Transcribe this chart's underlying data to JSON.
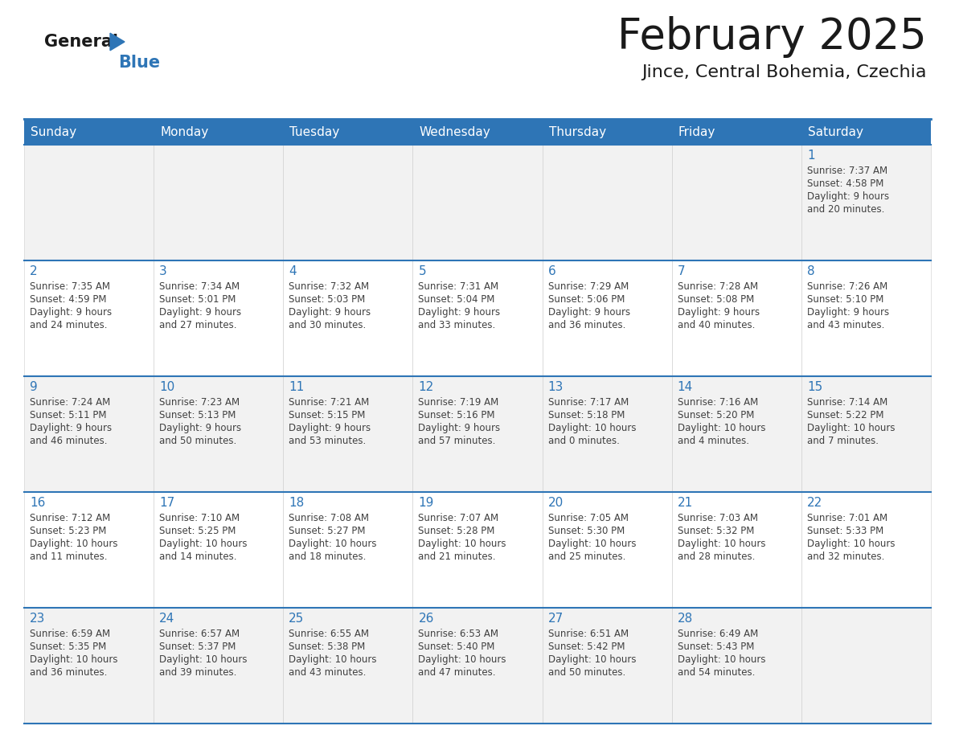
{
  "title": "February 2025",
  "subtitle": "Jince, Central Bohemia, Czechia",
  "header_bg": "#2E75B6",
  "header_text": "#FFFFFF",
  "cell_bg_even": "#F2F2F2",
  "cell_bg_odd": "#FFFFFF",
  "day_num_color": "#2E75B6",
  "info_color": "#404040",
  "row_border_color": "#2E75B6",
  "cell_border_color": "#CCCCCC",
  "title_color": "#1a1a1a",
  "subtitle_color": "#1a1a1a",
  "logo_general_color": "#1a1a1a",
  "logo_blue_color": "#2E75B6",
  "header_row": [
    "Sunday",
    "Monday",
    "Tuesday",
    "Wednesday",
    "Thursday",
    "Friday",
    "Saturday"
  ],
  "days": [
    {
      "date": 1,
      "col": 6,
      "row": 0,
      "sunrise": "7:37 AM",
      "sunset": "4:58 PM",
      "daylight_h": "9 hours",
      "daylight_m": "and 20 minutes."
    },
    {
      "date": 2,
      "col": 0,
      "row": 1,
      "sunrise": "7:35 AM",
      "sunset": "4:59 PM",
      "daylight_h": "9 hours",
      "daylight_m": "and 24 minutes."
    },
    {
      "date": 3,
      "col": 1,
      "row": 1,
      "sunrise": "7:34 AM",
      "sunset": "5:01 PM",
      "daylight_h": "9 hours",
      "daylight_m": "and 27 minutes."
    },
    {
      "date": 4,
      "col": 2,
      "row": 1,
      "sunrise": "7:32 AM",
      "sunset": "5:03 PM",
      "daylight_h": "9 hours",
      "daylight_m": "and 30 minutes."
    },
    {
      "date": 5,
      "col": 3,
      "row": 1,
      "sunrise": "7:31 AM",
      "sunset": "5:04 PM",
      "daylight_h": "9 hours",
      "daylight_m": "and 33 minutes."
    },
    {
      "date": 6,
      "col": 4,
      "row": 1,
      "sunrise": "7:29 AM",
      "sunset": "5:06 PM",
      "daylight_h": "9 hours",
      "daylight_m": "and 36 minutes."
    },
    {
      "date": 7,
      "col": 5,
      "row": 1,
      "sunrise": "7:28 AM",
      "sunset": "5:08 PM",
      "daylight_h": "9 hours",
      "daylight_m": "and 40 minutes."
    },
    {
      "date": 8,
      "col": 6,
      "row": 1,
      "sunrise": "7:26 AM",
      "sunset": "5:10 PM",
      "daylight_h": "9 hours",
      "daylight_m": "and 43 minutes."
    },
    {
      "date": 9,
      "col": 0,
      "row": 2,
      "sunrise": "7:24 AM",
      "sunset": "5:11 PM",
      "daylight_h": "9 hours",
      "daylight_m": "and 46 minutes."
    },
    {
      "date": 10,
      "col": 1,
      "row": 2,
      "sunrise": "7:23 AM",
      "sunset": "5:13 PM",
      "daylight_h": "9 hours",
      "daylight_m": "and 50 minutes."
    },
    {
      "date": 11,
      "col": 2,
      "row": 2,
      "sunrise": "7:21 AM",
      "sunset": "5:15 PM",
      "daylight_h": "9 hours",
      "daylight_m": "and 53 minutes."
    },
    {
      "date": 12,
      "col": 3,
      "row": 2,
      "sunrise": "7:19 AM",
      "sunset": "5:16 PM",
      "daylight_h": "9 hours",
      "daylight_m": "and 57 minutes."
    },
    {
      "date": 13,
      "col": 4,
      "row": 2,
      "sunrise": "7:17 AM",
      "sunset": "5:18 PM",
      "daylight_h": "10 hours",
      "daylight_m": "and 0 minutes."
    },
    {
      "date": 14,
      "col": 5,
      "row": 2,
      "sunrise": "7:16 AM",
      "sunset": "5:20 PM",
      "daylight_h": "10 hours",
      "daylight_m": "and 4 minutes."
    },
    {
      "date": 15,
      "col": 6,
      "row": 2,
      "sunrise": "7:14 AM",
      "sunset": "5:22 PM",
      "daylight_h": "10 hours",
      "daylight_m": "and 7 minutes."
    },
    {
      "date": 16,
      "col": 0,
      "row": 3,
      "sunrise": "7:12 AM",
      "sunset": "5:23 PM",
      "daylight_h": "10 hours",
      "daylight_m": "and 11 minutes."
    },
    {
      "date": 17,
      "col": 1,
      "row": 3,
      "sunrise": "7:10 AM",
      "sunset": "5:25 PM",
      "daylight_h": "10 hours",
      "daylight_m": "and 14 minutes."
    },
    {
      "date": 18,
      "col": 2,
      "row": 3,
      "sunrise": "7:08 AM",
      "sunset": "5:27 PM",
      "daylight_h": "10 hours",
      "daylight_m": "and 18 minutes."
    },
    {
      "date": 19,
      "col": 3,
      "row": 3,
      "sunrise": "7:07 AM",
      "sunset": "5:28 PM",
      "daylight_h": "10 hours",
      "daylight_m": "and 21 minutes."
    },
    {
      "date": 20,
      "col": 4,
      "row": 3,
      "sunrise": "7:05 AM",
      "sunset": "5:30 PM",
      "daylight_h": "10 hours",
      "daylight_m": "and 25 minutes."
    },
    {
      "date": 21,
      "col": 5,
      "row": 3,
      "sunrise": "7:03 AM",
      "sunset": "5:32 PM",
      "daylight_h": "10 hours",
      "daylight_m": "and 28 minutes."
    },
    {
      "date": 22,
      "col": 6,
      "row": 3,
      "sunrise": "7:01 AM",
      "sunset": "5:33 PM",
      "daylight_h": "10 hours",
      "daylight_m": "and 32 minutes."
    },
    {
      "date": 23,
      "col": 0,
      "row": 4,
      "sunrise": "6:59 AM",
      "sunset": "5:35 PM",
      "daylight_h": "10 hours",
      "daylight_m": "and 36 minutes."
    },
    {
      "date": 24,
      "col": 1,
      "row": 4,
      "sunrise": "6:57 AM",
      "sunset": "5:37 PM",
      "daylight_h": "10 hours",
      "daylight_m": "and 39 minutes."
    },
    {
      "date": 25,
      "col": 2,
      "row": 4,
      "sunrise": "6:55 AM",
      "sunset": "5:38 PM",
      "daylight_h": "10 hours",
      "daylight_m": "and 43 minutes."
    },
    {
      "date": 26,
      "col": 3,
      "row": 4,
      "sunrise": "6:53 AM",
      "sunset": "5:40 PM",
      "daylight_h": "10 hours",
      "daylight_m": "and 47 minutes."
    },
    {
      "date": 27,
      "col": 4,
      "row": 4,
      "sunrise": "6:51 AM",
      "sunset": "5:42 PM",
      "daylight_h": "10 hours",
      "daylight_m": "and 50 minutes."
    },
    {
      "date": 28,
      "col": 5,
      "row": 4,
      "sunrise": "6:49 AM",
      "sunset": "5:43 PM",
      "daylight_h": "10 hours",
      "daylight_m": "and 54 minutes."
    }
  ]
}
